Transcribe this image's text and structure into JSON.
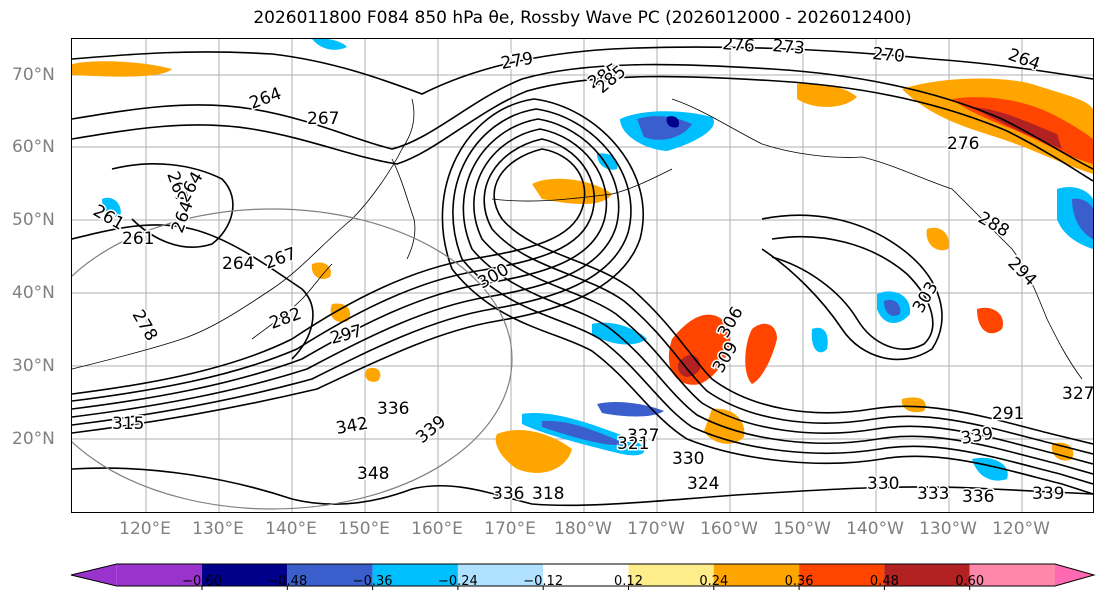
{
  "title": "2026011800 F084 850 hPa θe, Rossby Wave PC (2026012000 - 2026012400)",
  "lat_labels": [
    "70°N",
    "60°N",
    "50°N",
    "40°N",
    "30°N",
    "20°N"
  ],
  "lon_labels": [
    "120°E",
    "130°E",
    "140°E",
    "150°E",
    "160°E",
    "170°E",
    "180°W",
    "170°W",
    "160°W",
    "150°W",
    "140°W",
    "130°W",
    "120°W"
  ],
  "contour_labels": [
    "279",
    "276",
    "273",
    "270",
    "264",
    "285",
    "264",
    "267",
    "267",
    "264",
    "261",
    "261",
    "264",
    "264",
    "267",
    "282",
    "278",
    "285",
    "297",
    "300",
    "306",
    "309",
    "303",
    "288",
    "294",
    "315",
    "336",
    "339",
    "342",
    "348",
    "327",
    "330",
    "330",
    "333",
    "336",
    "336",
    "339",
    "339",
    "327",
    "318",
    "324",
    "276",
    "321",
    "291"
  ],
  "colorbar": {
    "tick_labels": [
      "−0.60",
      "−0.48",
      "−0.36",
      "−0.24",
      "−0.12",
      "0.12",
      "0.24",
      "0.36",
      "0.48",
      "0.60"
    ],
    "colors": [
      "#9933cc",
      "#00008b",
      "#3a5fcd",
      "#00bfff",
      "#b0e2ff",
      "#ffffff",
      "#ffec8b",
      "#ffa500",
      "#ff4500",
      "#b22222",
      "#ff88aa",
      "#ff69b4"
    ]
  },
  "chart_data": {
    "type": "map",
    "title": "2026011800 F084 850 hPa θe, Rossby Wave PC (2026012000 - 2026012400)",
    "contour_field": "850 hPa θe",
    "shaded_field": "Rossby Wave PC",
    "contour_levels": [
      261,
      264,
      267,
      270,
      273,
      276,
      279,
      282,
      285,
      288,
      291,
      294,
      297,
      300,
      303,
      306,
      309,
      312,
      315,
      318,
      321,
      324,
      327,
      330,
      333,
      336,
      339,
      342,
      345,
      348
    ],
    "shading_levels": [
      -0.6,
      -0.48,
      -0.36,
      -0.24,
      -0.12,
      0.12,
      0.24,
      0.36,
      0.48,
      0.6
    ],
    "lat_range": [
      10,
      75
    ],
    "lon_range": [
      110,
      250
    ]
  }
}
